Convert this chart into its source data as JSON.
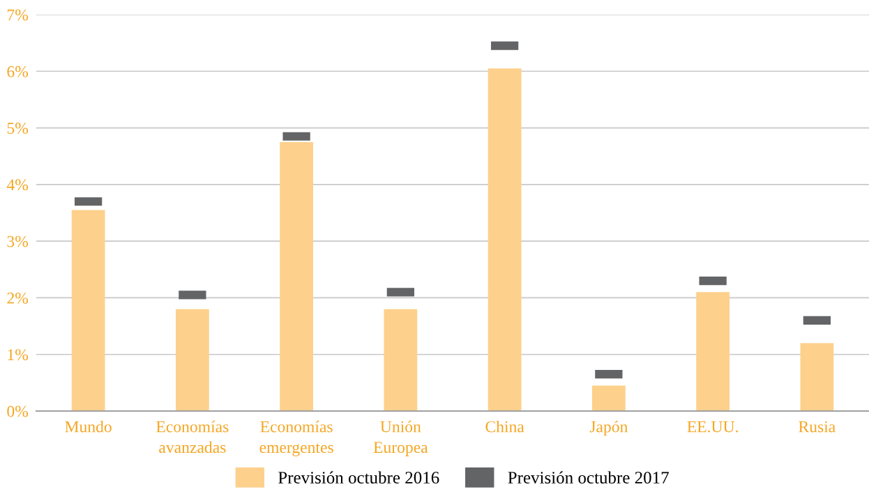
{
  "chart_data": {
    "type": "bar",
    "categories": [
      "Mundo",
      "Economías\navanzadas",
      "Economías\nemergentes",
      "Unión\nEuropea",
      "China",
      "Japón",
      "EE.UU.",
      "Rusia"
    ],
    "series": [
      {
        "name": "Previsión octubre 2016",
        "color": "#fdd08c",
        "values": [
          3.55,
          1.8,
          4.75,
          1.8,
          6.05,
          0.45,
          2.1,
          1.2
        ]
      },
      {
        "name": "Previsión octubre 2017",
        "type": "scatter",
        "color": "#636466",
        "values": [
          3.7,
          2.05,
          4.85,
          2.1,
          6.45,
          0.65,
          2.3,
          1.6
        ]
      }
    ],
    "ylim": [
      0,
      7
    ],
    "yticks": [
      {
        "value": 0,
        "label": "0%"
      },
      {
        "value": 1,
        "label": "1%"
      },
      {
        "value": 2,
        "label": "2%"
      },
      {
        "value": 3,
        "label": "3%"
      },
      {
        "value": 4,
        "label": "4%"
      },
      {
        "value": 5,
        "label": "5%"
      },
      {
        "value": 6,
        "label": "6%"
      },
      {
        "value": 7,
        "label": "7%"
      }
    ],
    "grid": "y",
    "legend": "bottom"
  }
}
